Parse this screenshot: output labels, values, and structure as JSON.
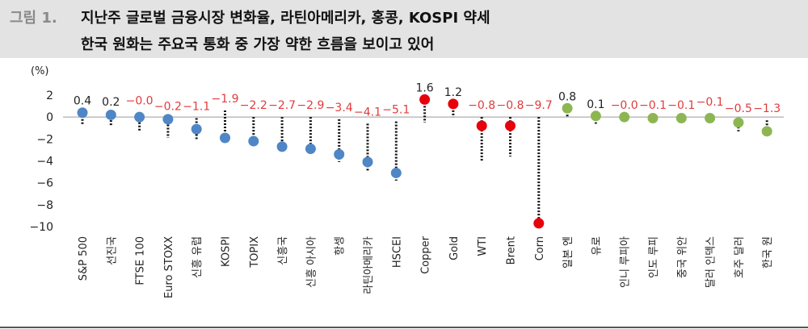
{
  "header": {
    "figure_label": "그림 1.",
    "title_line1": "지난주 글로벌 금융시장 변화율, 라틴아메리카, 홍콩, KOSPI 약세",
    "title_line2": "한국 원화는 주요국 통화 중 가장 약한 흐름을 보이고 있어"
  },
  "colors": {
    "blue": "#4f86c6",
    "red": "#e8000a",
    "green": "#8db653",
    "label_black": "#222222",
    "label_red": "#e03c3c"
  },
  "chart_data": {
    "type": "scatter",
    "ylabel": "(%)",
    "ylim": [
      -10,
      2
    ],
    "yticks": [
      "2",
      "0",
      "−2",
      "−4",
      "−6",
      "−8",
      "−10"
    ],
    "ytick_values": [
      2,
      0,
      -2,
      -4,
      -6,
      -8,
      -10
    ],
    "grid": false,
    "categories": [
      "S&P 500",
      "선진국",
      "FTSE 100",
      "Euro STOXX",
      "신흥 유럽",
      "KOSPI",
      "TOPIX",
      "신흥국",
      "신흥 아시아",
      "항셍",
      "라틴아메리카",
      "HSCEI",
      "Copper",
      "Gold",
      "WTI",
      "Brent",
      "Corn",
      "일본 엔",
      "유로",
      "인니 루피아",
      "인도 루피",
      "중국 위안",
      "달러 인덱스",
      "호주 달러",
      "한국 원"
    ],
    "values": [
      0.4,
      0.2,
      -0.0,
      -0.2,
      -1.1,
      -1.9,
      -2.2,
      -2.7,
      -2.9,
      -3.4,
      -4.1,
      -5.1,
      1.6,
      1.2,
      -0.8,
      -0.8,
      -9.7,
      0.8,
      0.1,
      -0.0,
      -0.1,
      -0.1,
      -0.1,
      -0.5,
      -1.3
    ],
    "value_labels": [
      "0.4",
      "0.2",
      "−0.0",
      "−0.2",
      "−1.1",
      "−1.9",
      "−2.2",
      "−2.7",
      "−2.9",
      "−3.4",
      "−4.1",
      "−5.1",
      "1.6",
      "1.2",
      "−0.8",
      "−0.8",
      "−9.7",
      "0.8",
      "0.1",
      "−0.0",
      "−0.1",
      "−0.1",
      "−0.1",
      "−0.5",
      "−1.3"
    ],
    "groups": [
      "blue",
      "blue",
      "blue",
      "blue",
      "blue",
      "blue",
      "blue",
      "blue",
      "blue",
      "blue",
      "blue",
      "blue",
      "red",
      "red",
      "red",
      "red",
      "red",
      "green",
      "green",
      "green",
      "green",
      "green",
      "green",
      "green",
      "green"
    ],
    "range_low": [
      -0.7,
      -0.8,
      -1.3,
      -1.9,
      -2.0,
      -1.9,
      -2.2,
      -2.7,
      -3.2,
      -4.1,
      -4.9,
      -5.8,
      -0.5,
      0.0,
      -4.0,
      -3.6,
      -9.7,
      0.0,
      -0.6,
      -0.0,
      -0.1,
      -0.1,
      -0.1,
      -1.3,
      -1.3
    ],
    "range_high": [
      0.4,
      0.3,
      0.4,
      -0.1,
      -0.1,
      0.6,
      0.0,
      0.0,
      0.0,
      -0.2,
      -0.6,
      -0.4,
      1.6,
      1.2,
      0.0,
      0.0,
      0.0,
      0.8,
      0.1,
      0.0,
      0.0,
      0.0,
      0.3,
      -0.3,
      -0.3
    ]
  }
}
